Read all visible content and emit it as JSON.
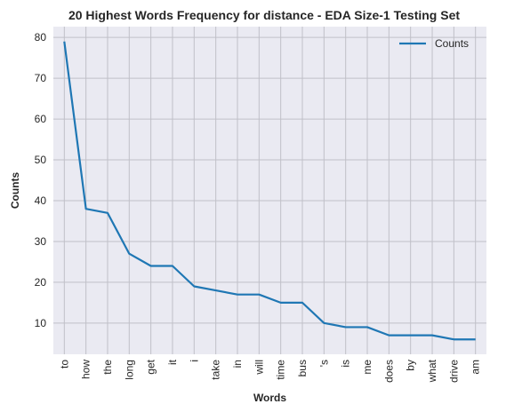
{
  "chart_data": {
    "type": "line",
    "title": "20 Highest Words Frequency for distance - EDA Size-1 Testing Set",
    "xlabel": "Words",
    "ylabel": "Counts",
    "categories": [
      "to",
      "how",
      "the",
      "long",
      "get",
      "it",
      "i",
      "take",
      "in",
      "will",
      "time",
      "bus",
      "'s",
      "is",
      "me",
      "does",
      "by",
      "what",
      "drive",
      "am"
    ],
    "series": [
      {
        "name": "Counts",
        "values": [
          79,
          38,
          37,
          27,
          24,
          24,
          19,
          18,
          17,
          17,
          15,
          15,
          10,
          9,
          9,
          7,
          7,
          7,
          6,
          6
        ]
      }
    ],
    "ylim": [
      2.35,
      82.65
    ],
    "yticks": [
      10,
      20,
      30,
      40,
      50,
      60,
      70,
      80
    ],
    "grid": true,
    "legend_position": "top-right",
    "colors": {
      "line": "#1f77b4",
      "plot_background": "#eaeaf2",
      "grid": "#c0c0c8"
    }
  }
}
